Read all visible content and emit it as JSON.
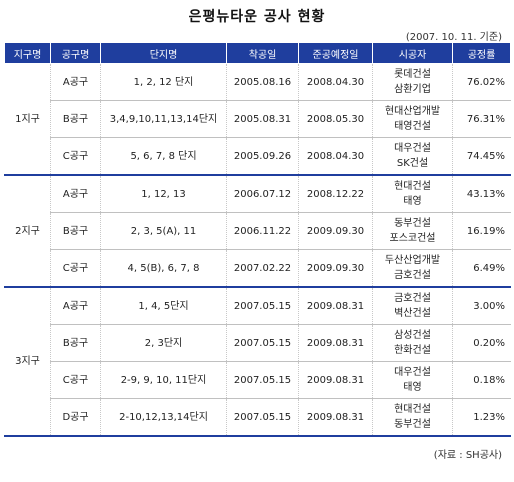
{
  "title": "은평뉴타운 공사 현황",
  "as_of": "(2007. 10. 11. 기준)",
  "source": "(자료 : SH공사)",
  "headers": [
    "지구명",
    "공구명",
    "단지명",
    "착공일",
    "준공예정일",
    "시공자",
    "공정률"
  ],
  "districts": [
    {
      "name": "1지구",
      "rows": [
        {
          "section": "A공구",
          "complexes": "1, 2, 12 단지",
          "start": "2005.08.16",
          "completion": "2008.04.30",
          "contractors": [
            "롯데건설",
            "삼환기업"
          ],
          "progress": "76.02%"
        },
        {
          "section": "B공구",
          "complexes": "3,4,9,10,11,13,14단지",
          "start": "2005.08.31",
          "completion": "2008.05.30",
          "contractors": [
            "현대산업개발",
            "태영건설"
          ],
          "progress": "76.31%"
        },
        {
          "section": "C공구",
          "complexes": "5, 6, 7, 8 단지",
          "start": "2005.09.26",
          "completion": "2008.04.30",
          "contractors": [
            "대우건설",
            "SK건설"
          ],
          "progress": "74.45%"
        }
      ]
    },
    {
      "name": "2지구",
      "rows": [
        {
          "section": "A공구",
          "complexes": "1, 12, 13",
          "start": "2006.07.12",
          "completion": "2008.12.22",
          "contractors": [
            "현대건설",
            "태영"
          ],
          "progress": "43.13%"
        },
        {
          "section": "B공구",
          "complexes": "2, 3, 5(A), 11",
          "start": "2006.11.22",
          "completion": "2009.09.30",
          "contractors": [
            "동부건설",
            "포스코건설"
          ],
          "progress": "16.19%"
        },
        {
          "section": "C공구",
          "complexes": "4, 5(B), 6, 7, 8",
          "start": "2007.02.22",
          "completion": "2009.09.30",
          "contractors": [
            "두산산업개발",
            "금호건설"
          ],
          "progress": "6.49%"
        }
      ]
    },
    {
      "name": "3지구",
      "rows": [
        {
          "section": "A공구",
          "complexes": "1, 4, 5단지",
          "start": "2007.05.15",
          "completion": "2009.08.31",
          "contractors": [
            "금호건설",
            "벽산건설"
          ],
          "progress": "3.00%"
        },
        {
          "section": "B공구",
          "complexes": "2, 3단지",
          "start": "2007.05.15",
          "completion": "2009.08.31",
          "contractors": [
            "삼성건설",
            "한화건설"
          ],
          "progress": "0.20%"
        },
        {
          "section": "C공구",
          "complexes": "2-9, 9, 10, 11단지",
          "start": "2007.05.15",
          "completion": "2009.08.31",
          "contractors": [
            "대우건설",
            "태영"
          ],
          "progress": "0.18%"
        },
        {
          "section": "D공구",
          "complexes": "2-10,12,13,14단지",
          "start": "2007.05.15",
          "completion": "2009.08.31",
          "contractors": [
            "현대건설",
            "동부건설"
          ],
          "progress": "1.23%"
        }
      ]
    }
  ]
}
